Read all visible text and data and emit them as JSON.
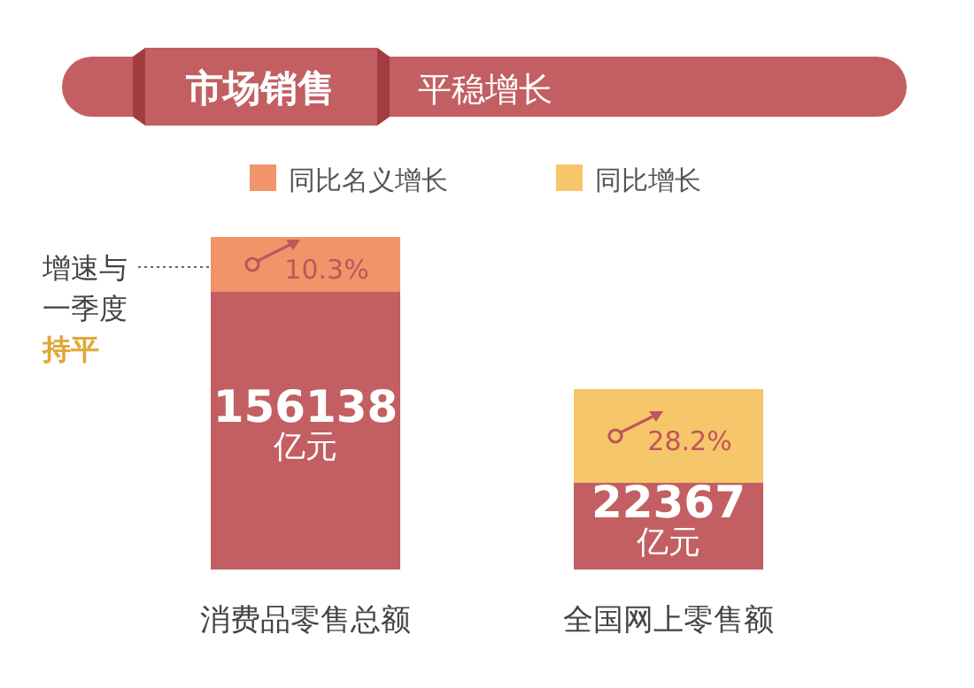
{
  "chart_data": {
    "type": "other",
    "title": "市场销售",
    "subtitle": "平稳增长",
    "categories": [
      "消费品零售总额",
      "全国网上零售额"
    ],
    "legend": "top",
    "series": [
      {
        "color": "#c35f62",
        "values": [
          156138,
          22367
        ],
        "value_labels": [
          "156138\n亿元",
          "22367\n亿元"
        ]
      },
      {
        "name": "同比名义增长",
        "color": "#f0956a",
        "values": [
          10.3,
          null
        ],
        "value_labels": [
          "10.3%",
          null
        ]
      },
      {
        "name": "同比增长",
        "color": "#f5c66a",
        "values": [
          null,
          28.2
        ],
        "value_labels": [
          null,
          "28.2%"
        ]
      }
    ],
    "annotations": [
      "增速与一季度",
      "持平"
    ]
  }
}
